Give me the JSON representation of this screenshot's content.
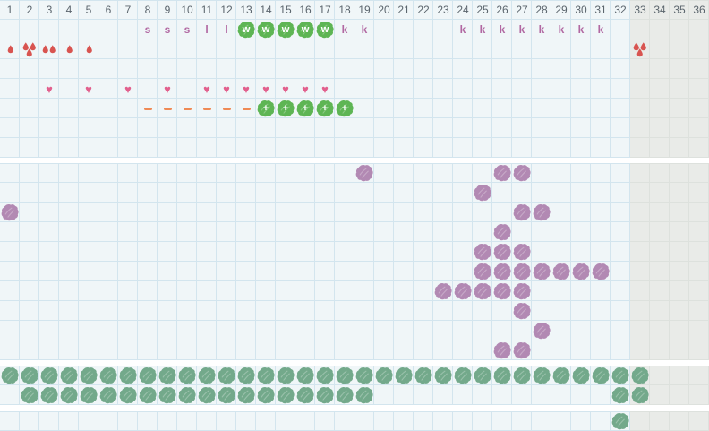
{
  "grid": {
    "columns": 36,
    "column_numbers": [
      "1",
      "2",
      "3",
      "4",
      "5",
      "6",
      "7",
      "8",
      "9",
      "10",
      "11",
      "12",
      "13",
      "14",
      "15",
      "16",
      "17",
      "18",
      "19",
      "20",
      "21",
      "22",
      "23",
      "24",
      "25",
      "26",
      "27",
      "28",
      "29",
      "30",
      "31",
      "32",
      "33",
      "34",
      "35",
      "36"
    ],
    "shaded_from_column": 33
  },
  "colors": {
    "cell_bg": "#f0f6f8",
    "grid_line": "#d3e5ee",
    "shaded_bg": "#e9ebe8",
    "shaded_grid_line": "#dde1dd",
    "header_text": "#5a646c",
    "letter": "#b168a2",
    "heart": "#e2608d",
    "droplet": "#d85450",
    "dash": "#ef8a55",
    "green_blob": "#5eb554",
    "purple_blob": "#b289b3",
    "sage_blob": "#73a98b",
    "gap": "#ffffff"
  },
  "icons": {
    "heart_glyph": "♥"
  },
  "top_section": {
    "row_order": [
      "letters",
      "droplets",
      "empty",
      "hearts",
      "dash_plus",
      "empty",
      "empty"
    ],
    "letter_marks": [
      {
        "col": 8,
        "letter": "s"
      },
      {
        "col": 9,
        "letter": "s"
      },
      {
        "col": 10,
        "letter": "s"
      },
      {
        "col": 11,
        "letter": "l"
      },
      {
        "col": 12,
        "letter": "l"
      },
      {
        "col": 18,
        "letter": "k"
      },
      {
        "col": 19,
        "letter": "k"
      },
      {
        "col": 24,
        "letter": "k"
      },
      {
        "col": 25,
        "letter": "k"
      },
      {
        "col": 26,
        "letter": "k"
      },
      {
        "col": 27,
        "letter": "k"
      },
      {
        "col": 28,
        "letter": "k"
      },
      {
        "col": 29,
        "letter": "k"
      },
      {
        "col": 30,
        "letter": "k"
      },
      {
        "col": 31,
        "letter": "k"
      }
    ],
    "w_blob_cols": [
      13,
      14,
      15,
      16,
      17
    ],
    "w_blob_letter": "w",
    "droplet_marks": [
      {
        "col": 1,
        "count": 1
      },
      {
        "col": 2,
        "count": 3
      },
      {
        "col": 3,
        "count": 2
      },
      {
        "col": 4,
        "count": 1
      },
      {
        "col": 5,
        "count": 1
      },
      {
        "col": 33,
        "count": 3
      }
    ],
    "heart_cols": [
      3,
      5,
      7,
      9,
      11,
      12,
      13,
      14,
      15,
      16,
      17
    ],
    "dash_cols": [
      8,
      9,
      10,
      11,
      12,
      13
    ],
    "plus_blob_cols": [
      14,
      15,
      16,
      17,
      18
    ],
    "plus_blob_symbol": "+"
  },
  "middle_section": {
    "rows": [
      [
        19,
        26,
        27
      ],
      [
        25
      ],
      [
        1,
        27,
        28
      ],
      [
        26
      ],
      [
        25,
        26,
        27
      ],
      [
        25,
        26,
        27,
        28,
        29,
        30,
        31
      ],
      [
        23,
        24,
        25,
        26,
        27
      ],
      [
        27
      ],
      [
        28
      ],
      [
        26,
        27
      ]
    ]
  },
  "green_section": {
    "rows": [
      [
        1,
        2,
        3,
        4,
        5,
        6,
        7,
        8,
        9,
        10,
        11,
        12,
        13,
        14,
        15,
        16,
        17,
        18,
        19,
        20,
        21,
        22,
        23,
        24,
        25,
        26,
        27,
        28,
        29,
        30,
        31,
        32,
        33
      ],
      [
        2,
        3,
        4,
        5,
        6,
        7,
        8,
        9,
        10,
        11,
        12,
        13,
        14,
        15,
        16,
        17,
        18,
        19,
        32,
        33
      ]
    ]
  },
  "footer_section": {
    "cols": [
      32
    ]
  }
}
